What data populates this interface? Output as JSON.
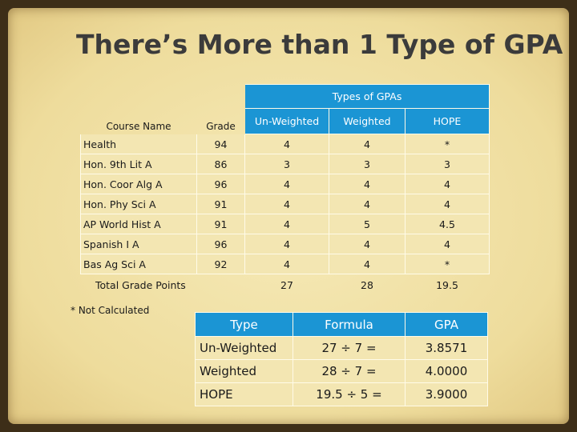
{
  "title": "There’s More than 1 Type of GPA",
  "gpa_table": {
    "group_header": "Types of GPAs",
    "columns": [
      "Course Name",
      "Grade",
      "Un-Weighted",
      "Weighted",
      "HOPE"
    ],
    "rows": [
      [
        "Health",
        94,
        4,
        4,
        "*"
      ],
      [
        "Hon. 9th Lit A",
        86,
        3,
        3,
        3
      ],
      [
        "Hon. Coor Alg A",
        96,
        4,
        4,
        4
      ],
      [
        "Hon. Phy Sci A",
        91,
        4,
        4,
        4
      ],
      [
        "AP World Hist A",
        91,
        4,
        5,
        4.5
      ],
      [
        "Spanish I A",
        96,
        4,
        4,
        4
      ],
      [
        "Bas Ag Sci A",
        92,
        4,
        4,
        "*"
      ]
    ],
    "total": {
      "label": "Total Grade Points",
      "values": [
        27,
        28,
        19.5
      ]
    }
  },
  "note": "* Not Calculated",
  "formula_table": {
    "columns": [
      "Type",
      "Formula",
      "GPA"
    ],
    "rows": [
      [
        "Un-Weighted",
        "27 ÷ 7 =",
        "3.8571"
      ],
      [
        "Weighted",
        "28 ÷ 7 =",
        "4.0000"
      ],
      [
        "HOPE",
        "19.5 ÷ 5 =",
        "3.9000"
      ]
    ]
  }
}
